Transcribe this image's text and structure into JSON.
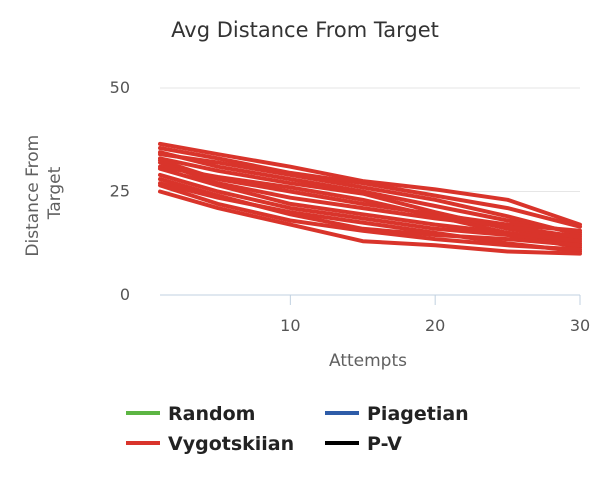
{
  "chart_data": {
    "type": "line",
    "title": "Avg Distance From Target",
    "xlabel": "Attempts",
    "ylabel_lines": [
      "Distance From",
      "Target"
    ],
    "xlim": [
      1,
      30
    ],
    "ylim": [
      0,
      50
    ],
    "x_ticks": [
      10,
      20,
      30
    ],
    "y_ticks": [
      0,
      25,
      50
    ],
    "grid": "y",
    "legend_position": "bottom",
    "legend": [
      {
        "label": "Random",
        "color": "#5cb543"
      },
      {
        "label": "Piagetian",
        "color": "#2e5ca8"
      },
      {
        "label": "Vygotskiian",
        "color": "#d9342b"
      },
      {
        "label": "P-V",
        "color": "#000000"
      }
    ],
    "series_color": "#d9342b",
    "series": [
      {
        "x": [
          1,
          5,
          10,
          15,
          20,
          25,
          30
        ],
        "values": [
          36.5,
          34,
          31,
          27.5,
          25.5,
          23,
          17
        ]
      },
      {
        "x": [
          1,
          5,
          10,
          15,
          20,
          25,
          30
        ],
        "values": [
          35.5,
          33,
          29.5,
          27,
          24,
          21,
          16.5
        ]
      },
      {
        "x": [
          1,
          5,
          10,
          15,
          20,
          25,
          30
        ],
        "values": [
          34.5,
          31,
          28,
          25,
          21.5,
          18,
          15
        ]
      },
      {
        "x": [
          1,
          5,
          10,
          15,
          20,
          25,
          30
        ],
        "values": [
          34,
          32,
          29,
          26,
          23,
          19,
          14.5
        ]
      },
      {
        "x": [
          1,
          5,
          10,
          15,
          20,
          25,
          30
        ],
        "values": [
          33,
          30,
          27,
          24.5,
          20,
          16,
          13.5
        ]
      },
      {
        "x": [
          1,
          5,
          10,
          15,
          20,
          25,
          30
        ],
        "values": [
          32.5,
          28,
          25,
          22,
          19.5,
          17,
          15.5
        ]
      },
      {
        "x": [
          1,
          5,
          10,
          15,
          20,
          25,
          30
        ],
        "values": [
          32,
          27,
          23.5,
          21,
          18.5,
          16.5,
          14
        ]
      },
      {
        "x": [
          1,
          5,
          10,
          15,
          20,
          25,
          30
        ],
        "values": [
          31,
          28.5,
          26,
          23,
          19,
          15,
          12.5
        ]
      },
      {
        "x": [
          1,
          5,
          10,
          15,
          20,
          25,
          30
        ],
        "values": [
          30.5,
          26.5,
          22,
          19.5,
          17,
          15,
          13
        ]
      },
      {
        "x": [
          1,
          5,
          10,
          15,
          20,
          25,
          30
        ],
        "values": [
          29,
          25,
          21,
          18.5,
          16,
          14.5,
          11.5
        ]
      },
      {
        "x": [
          1,
          5,
          10,
          15,
          20,
          25,
          30
        ],
        "values": [
          28,
          24,
          19.5,
          16,
          14.5,
          13.5,
          12
        ]
      },
      {
        "x": [
          1,
          5,
          10,
          15,
          20,
          25,
          30
        ],
        "values": [
          27,
          23.5,
          20,
          17.5,
          15,
          12.5,
          10.5
        ]
      },
      {
        "x": [
          1,
          5,
          10,
          15,
          20,
          25,
          30
        ],
        "values": [
          26.5,
          22,
          18,
          15.5,
          13.5,
          12,
          11
        ]
      },
      {
        "x": [
          1,
          5,
          10,
          15,
          20,
          25,
          30
        ],
        "values": [
          25,
          21,
          17,
          13,
          12,
          10.5,
          10
        ]
      }
    ]
  }
}
